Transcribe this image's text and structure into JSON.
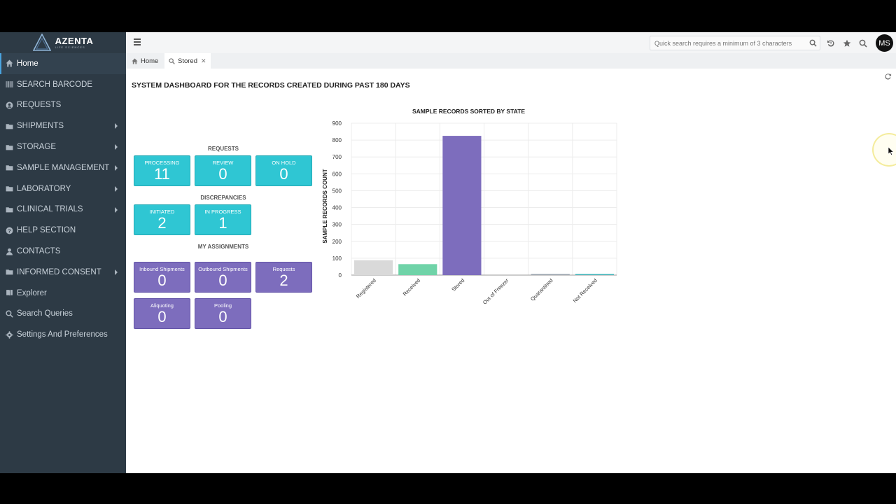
{
  "brand": {
    "name": "AZENTA",
    "sub": "LIFE SCIENCES"
  },
  "sidebar": {
    "items": [
      {
        "label": "Home",
        "icon": "home-icon",
        "active": true,
        "caret": false
      },
      {
        "label": "SEARCH BARCODE",
        "icon": "barcode-icon",
        "caret": false
      },
      {
        "label": "REQUESTS",
        "icon": "circle-user-icon",
        "caret": false
      },
      {
        "label": "SHIPMENTS",
        "icon": "folder-icon",
        "caret": true
      },
      {
        "label": "STORAGE",
        "icon": "folder-icon",
        "caret": true
      },
      {
        "label": "SAMPLE MANAGEMENT",
        "icon": "folder-icon",
        "caret": true
      },
      {
        "label": "LABORATORY",
        "icon": "folder-icon",
        "caret": true
      },
      {
        "label": "CLINICAL TRIALS",
        "icon": "folder-icon",
        "caret": true
      },
      {
        "label": "HELP SECTION",
        "icon": "question-icon",
        "caret": false
      },
      {
        "label": "CONTACTS",
        "icon": "user-icon",
        "caret": false
      },
      {
        "label": "INFORMED CONSENT",
        "icon": "folder-icon",
        "caret": true
      },
      {
        "label": "Explorer",
        "icon": "book-icon",
        "caret": false
      },
      {
        "label": "Search Queries",
        "icon": "search-icon",
        "caret": false
      },
      {
        "label": "Settings And Preferences",
        "icon": "gear-icon",
        "caret": false
      }
    ]
  },
  "topbar": {
    "search_placeholder": "Quick search requires a minimum of 3 characters",
    "avatar": "MS"
  },
  "tabs": [
    {
      "label": "Home",
      "icon": "home-icon"
    },
    {
      "label": "Stored",
      "icon": "search-icon",
      "closable": true
    }
  ],
  "dashboard": {
    "title": "SYSTEM DASHBOARD FOR THE RECORDS CREATED DURING PAST 180 DAYS",
    "requests": {
      "title": "REQUESTS",
      "tiles": [
        {
          "label": "PROCESSING",
          "value": "11"
        },
        {
          "label": "REVIEW",
          "value": "0"
        },
        {
          "label": "ON HOLD",
          "value": "0"
        }
      ]
    },
    "discrepancies": {
      "title": "DISCREPANCIES",
      "tiles": [
        {
          "label": "INITIATED",
          "value": "2"
        },
        {
          "label": "IN PROGRESS",
          "value": "1"
        }
      ]
    },
    "assignments": {
      "title": "MY ASSIGNMENTS",
      "tiles": [
        {
          "label": "Inbound Shipments",
          "value": "0"
        },
        {
          "label": "Outbound Shipments",
          "value": "0"
        },
        {
          "label": "Requests",
          "value": "2"
        },
        {
          "label": "Aliquoting",
          "value": "0"
        },
        {
          "label": "Pooling",
          "value": "0"
        }
      ]
    }
  },
  "chart_data": {
    "type": "bar",
    "title": "SAMPLE RECORDS SORTED BY STATE",
    "xlabel": "",
    "ylabel": "SAMPLE RECORDS COUNT",
    "categories": [
      "Registered",
      "Received",
      "Stored",
      "Out of Freezer",
      "Quarantined",
      "Not Received"
    ],
    "values": [
      88,
      65,
      825,
      0,
      3,
      5
    ],
    "colors": [
      "#d9d9d9",
      "#6fd3a8",
      "#7d6dbd",
      "#cfe6f5",
      "#9aa3ad",
      "#3fb3b8"
    ],
    "ylim": [
      0,
      900
    ],
    "yticks": [
      0,
      100,
      200,
      300,
      400,
      500,
      600,
      700,
      800,
      900
    ],
    "grid": true,
    "legend": "none"
  }
}
